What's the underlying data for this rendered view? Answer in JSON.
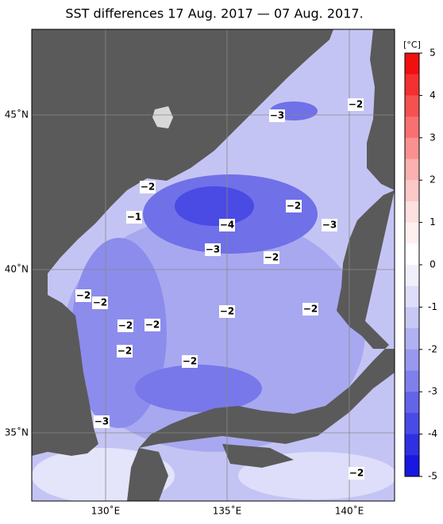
{
  "title": "SST differences 17 Aug. 2017 — 07 Aug. 2017.",
  "lat_labels": [
    "45˚N",
    "40˚N",
    "35˚N"
  ],
  "lon_labels": [
    "130˚E",
    "135˚E",
    "140˚E"
  ],
  "colorbar": {
    "unit": "[°C]",
    "ticks": [
      5,
      4,
      3,
      2,
      1,
      0,
      -1,
      -2,
      -3,
      -4,
      -5
    ],
    "lim": [
      -5,
      5
    ],
    "colors": [
      "#f01010",
      "#f43030",
      "#f75050",
      "#f97070",
      "#fb9090",
      "#fcb0b0",
      "#fdc8c8",
      "#fee0e0",
      "#fff0f0",
      "#ffffff",
      "#f0f0fd",
      "#dedefa",
      "#c8c8f6",
      "#b0b0f2",
      "#9898ef",
      "#8080ec",
      "#6464e9",
      "#4a4ae6",
      "#3030e3",
      "#1818e0"
    ]
  },
  "contour_labels": [
    "−2",
    "−3",
    "−2",
    "−1",
    "−2",
    "−4",
    "−3",
    "−3",
    "−2",
    "−2",
    "−2",
    "−2",
    "−2",
    "−2",
    "−2",
    "−2",
    "−2",
    "−3",
    "−2"
  ]
}
